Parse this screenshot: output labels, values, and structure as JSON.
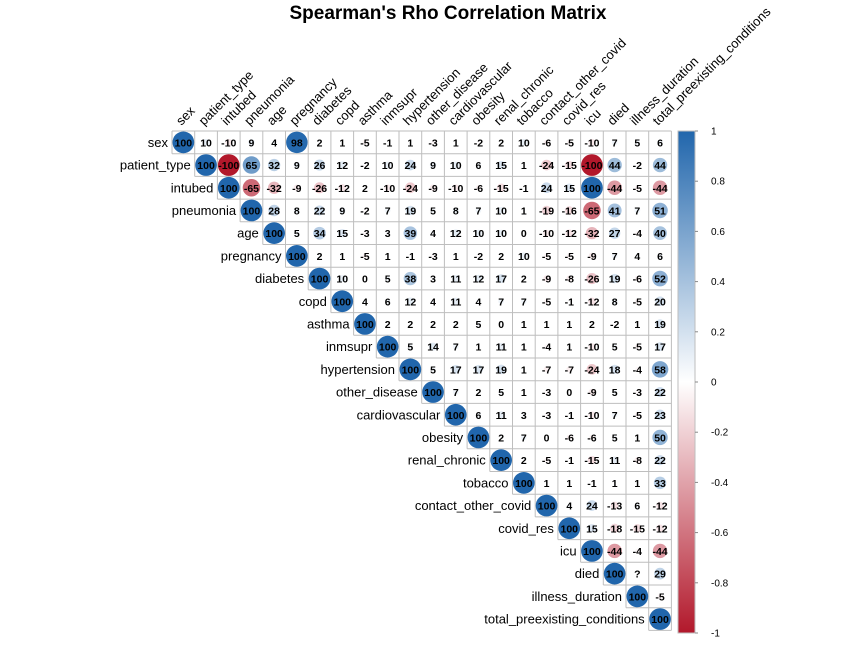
{
  "chart_data": {
    "type": "heatmap",
    "title": "Spearman's Rho Correlation Matrix",
    "variables": [
      "sex",
      "patient_type",
      "intubed",
      "pneumonia",
      "age",
      "pregnancy",
      "diabetes",
      "copd",
      "asthma",
      "inmsupr",
      "hypertension",
      "other_disease",
      "cardiovascular",
      "obesity",
      "renal_chronic",
      "tobacco",
      "contact_other_covid",
      "covid_res",
      "icu",
      "died",
      "illness_duration",
      "total_preexisting_conditions"
    ],
    "upper_triangle_percent": [
      [
        "100",
        "10",
        "-10",
        "9",
        "4",
        "98",
        "2",
        "1",
        "-5",
        "-1",
        "1",
        "-3",
        "1",
        "-2",
        "2",
        "10",
        "-6",
        "-5",
        "-10",
        "7",
        "5",
        "6"
      ],
      [
        "100",
        "-100",
        "65",
        "32",
        "9",
        "26",
        "12",
        "-2",
        "10",
        "24",
        "9",
        "10",
        "6",
        "15",
        "1",
        "-24",
        "-15",
        "-100",
        "44",
        "-2",
        "44"
      ],
      [
        "100",
        "-65",
        "-32",
        "-9",
        "-26",
        "-12",
        "2",
        "-10",
        "-24",
        "-9",
        "-10",
        "-6",
        "-15",
        "-1",
        "24",
        "15",
        "100",
        "-44",
        "-5",
        "-44"
      ],
      [
        "100",
        "28",
        "8",
        "22",
        "9",
        "-2",
        "7",
        "19",
        "5",
        "8",
        "7",
        "10",
        "1",
        "-19",
        "-16",
        "-65",
        "41",
        "7",
        "51"
      ],
      [
        "100",
        "5",
        "34",
        "15",
        "-3",
        "3",
        "39",
        "4",
        "12",
        "10",
        "10",
        "0",
        "-10",
        "-12",
        "-32",
        "27",
        "-4",
        "40"
      ],
      [
        "100",
        "2",
        "1",
        "-5",
        "1",
        "-1",
        "-3",
        "1",
        "-2",
        "2",
        "10",
        "-5",
        "-5",
        "-9",
        "7",
        "4",
        "6"
      ],
      [
        "100",
        "10",
        "0",
        "5",
        "38",
        "3",
        "11",
        "12",
        "17",
        "2",
        "-9",
        "-8",
        "-26",
        "19",
        "-6",
        "52"
      ],
      [
        "100",
        "4",
        "6",
        "12",
        "4",
        "11",
        "4",
        "7",
        "7",
        "-5",
        "-1",
        "-12",
        "8",
        "-5",
        "20"
      ],
      [
        "100",
        "2",
        "2",
        "2",
        "2",
        "5",
        "0",
        "1",
        "1",
        "1",
        "2",
        "-2",
        "1",
        "19"
      ],
      [
        "100",
        "5",
        "14",
        "7",
        "1",
        "11",
        "1",
        "-4",
        "1",
        "-10",
        "5",
        "-5",
        "17"
      ],
      [
        "100",
        "5",
        "17",
        "17",
        "19",
        "1",
        "-7",
        "-7",
        "-24",
        "18",
        "-4",
        "58"
      ],
      [
        "100",
        "7",
        "2",
        "5",
        "1",
        "-3",
        "0",
        "-9",
        "5",
        "-3",
        "22"
      ],
      [
        "100",
        "6",
        "11",
        "3",
        "-3",
        "-1",
        "-10",
        "7",
        "-5",
        "23"
      ],
      [
        "100",
        "2",
        "7",
        "0",
        "-6",
        "-6",
        "5",
        "1",
        "50"
      ],
      [
        "100",
        "2",
        "-5",
        "-1",
        "-15",
        "11",
        "-8",
        "22"
      ],
      [
        "100",
        "1",
        "1",
        "-1",
        "1",
        "1",
        "33"
      ],
      [
        "100",
        "4",
        "24",
        "-13",
        "6",
        "-12"
      ],
      [
        "100",
        "15",
        "-18",
        "-15",
        "-12"
      ],
      [
        "100",
        "-44",
        "-4",
        "-44"
      ],
      [
        "100",
        "?",
        "29"
      ],
      [
        "100",
        "-5"
      ],
      [
        "100"
      ]
    ],
    "colorbar": {
      "range": [
        -1,
        1
      ],
      "ticks": [
        "1",
        "0.8",
        "0.6",
        "0.4",
        "0.2",
        "0",
        "-0.2",
        "-0.4",
        "-0.6",
        "-0.8",
        "-1"
      ]
    },
    "colors": {
      "positive": "#2166AC",
      "negative": "#B2182B",
      "neutral": "#FFFFFF",
      "grid": "#BEBEBE"
    }
  }
}
